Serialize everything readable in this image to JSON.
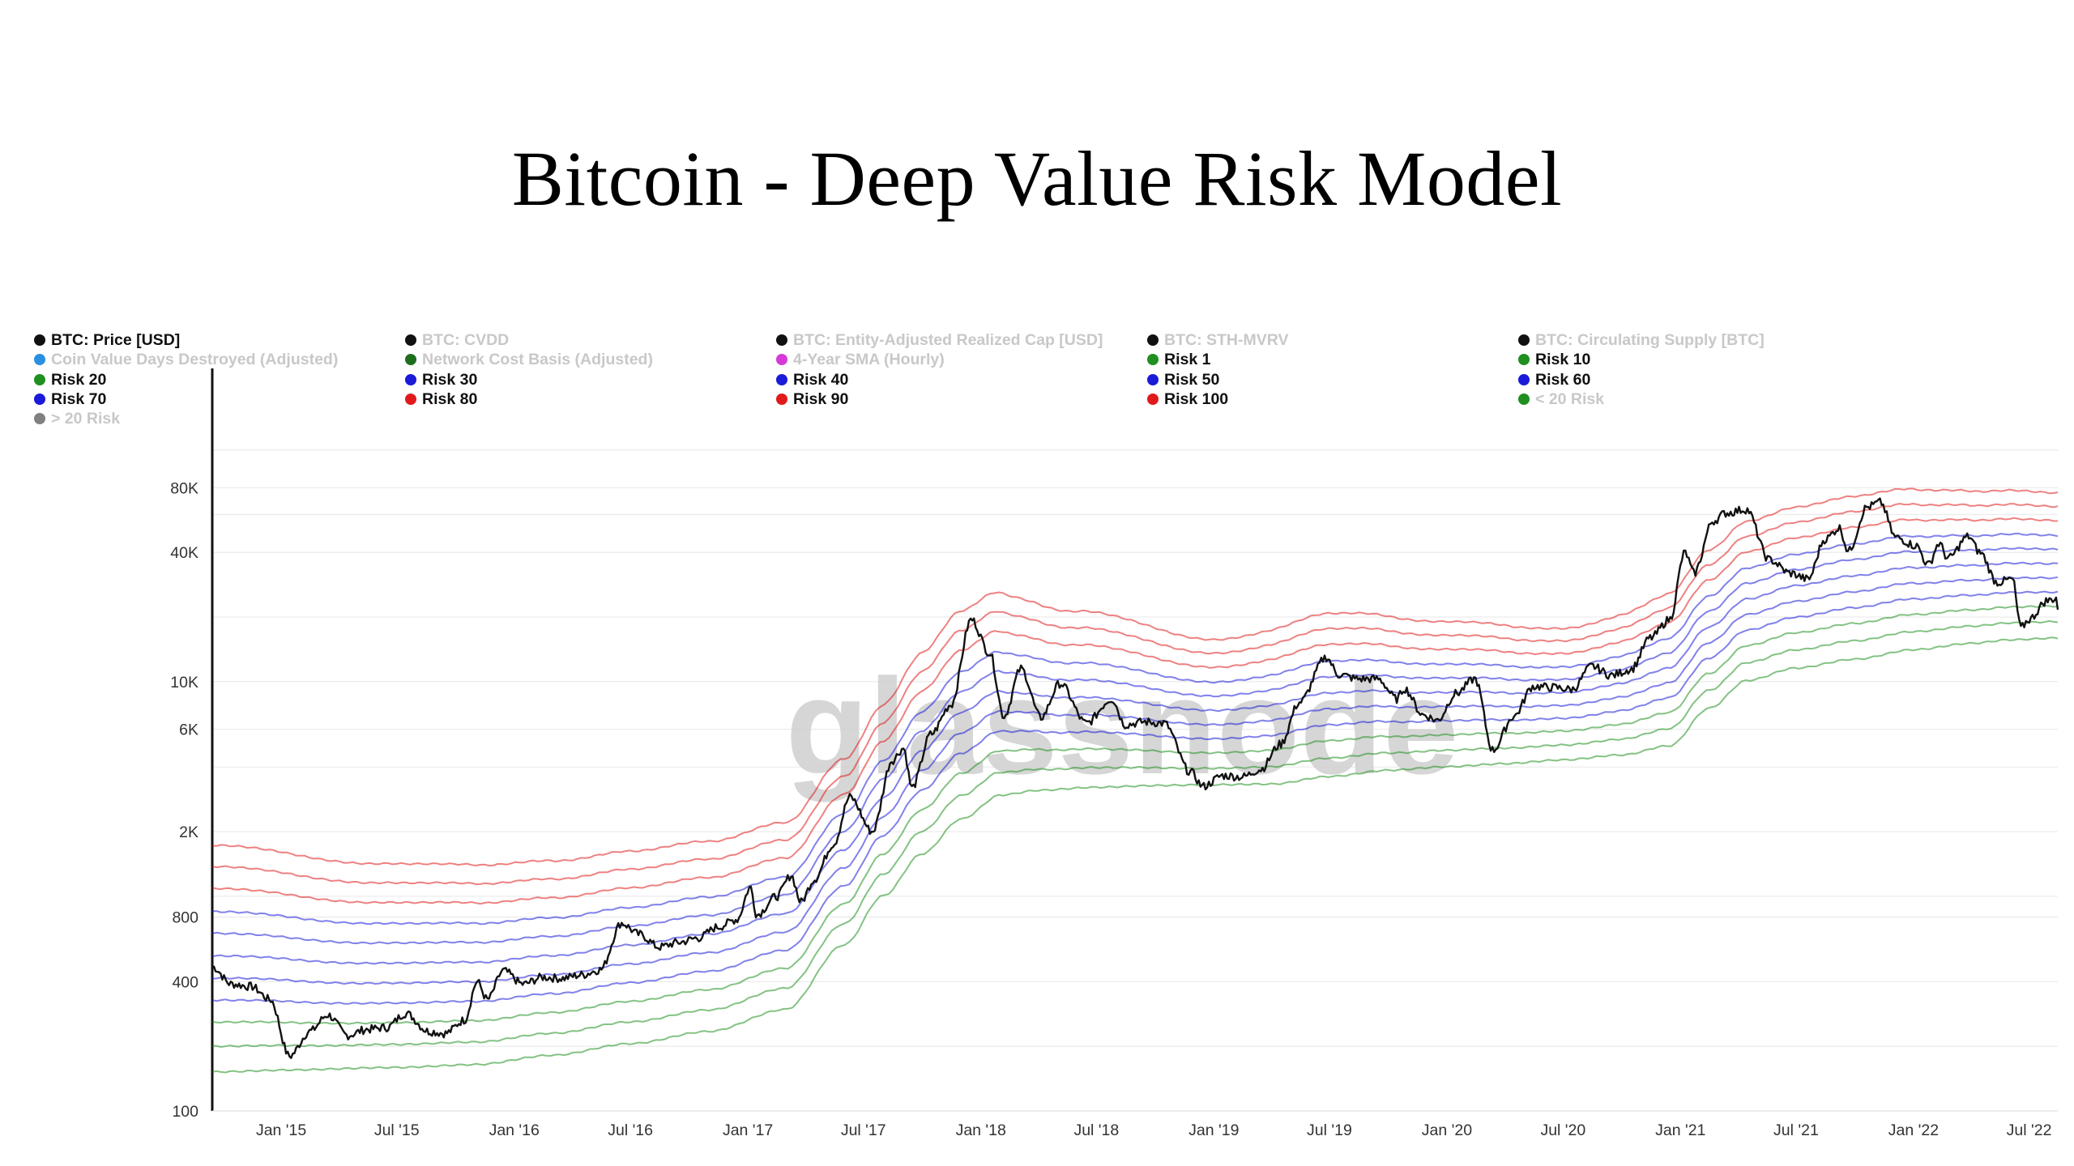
{
  "title": "Bitcoin - Deep Value Risk Model",
  "watermark": "glassnode",
  "legend": {
    "columns": [
      [
        {
          "label": "BTC: Price [USD]",
          "color": "#111111",
          "active": true
        },
        {
          "label": "Coin Value Days Destroyed (Adjusted)",
          "color": "#2a8fe0",
          "active": false
        },
        {
          "label": "Risk 20",
          "color": "#1f8f1f",
          "active": true
        },
        {
          "label": "Risk 70",
          "color": "#1a1ad8",
          "active": true
        },
        {
          "label": "> 20 Risk",
          "color": "#808080",
          "active": false
        }
      ],
      [
        {
          "label": "BTC: CVDD",
          "color": "#111111",
          "active": false
        },
        {
          "label": "Network Cost Basis (Adjusted)",
          "color": "#1e6e1e",
          "active": false
        },
        {
          "label": "Risk 30",
          "color": "#1a1ad8",
          "active": true
        },
        {
          "label": "Risk 80",
          "color": "#e01a1a",
          "active": true
        }
      ],
      [
        {
          "label": "BTC: Entity-Adjusted Realized Cap [USD]",
          "color": "#111111",
          "active": false
        },
        {
          "label": "4-Year SMA (Hourly)",
          "color": "#d63ad6",
          "active": false
        },
        {
          "label": "Risk 40",
          "color": "#1a1ad8",
          "active": true
        },
        {
          "label": "Risk 90",
          "color": "#e01a1a",
          "active": true
        }
      ],
      [
        {
          "label": "BTC: STH-MVRV",
          "color": "#111111",
          "active": false
        },
        {
          "label": "Risk 1",
          "color": "#1f8f1f",
          "active": true
        },
        {
          "label": "Risk 50",
          "color": "#1a1ad8",
          "active": true
        },
        {
          "label": "Risk 100",
          "color": "#e01a1a",
          "active": true
        }
      ],
      [
        {
          "label": "BTC: Circulating Supply [BTC]",
          "color": "#111111",
          "active": false
        },
        {
          "label": "Risk 10",
          "color": "#1f8f1f",
          "active": true
        },
        {
          "label": "Risk 60",
          "color": "#1a1ad8",
          "active": true
        },
        {
          "label": "< 20 Risk",
          "color": "#1f8f1f",
          "active": false
        }
      ]
    ]
  },
  "chart_data": {
    "type": "line",
    "y_scale": "log",
    "ylim": [
      100,
      150000
    ],
    "xlim": [
      "2014-09-15",
      "2022-08-15"
    ],
    "y_ticks": [
      {
        "value": 100,
        "label": "100"
      },
      {
        "value": 400,
        "label": "400"
      },
      {
        "value": 800,
        "label": "800"
      },
      {
        "value": 2000,
        "label": "2K"
      },
      {
        "value": 6000,
        "label": "6K"
      },
      {
        "value": 10000,
        "label": "10K"
      },
      {
        "value": 40000,
        "label": "40K"
      },
      {
        "value": 80000,
        "label": "80K"
      }
    ],
    "x_ticks": [
      {
        "date": "2015-01-01",
        "label": "Jan '15"
      },
      {
        "date": "2015-07-01",
        "label": "Jul '15"
      },
      {
        "date": "2016-01-01",
        "label": "Jan '16"
      },
      {
        "date": "2016-07-01",
        "label": "Jul '16"
      },
      {
        "date": "2017-01-01",
        "label": "Jan '17"
      },
      {
        "date": "2017-07-01",
        "label": "Jul '17"
      },
      {
        "date": "2018-01-01",
        "label": "Jan '18"
      },
      {
        "date": "2018-07-01",
        "label": "Jul '18"
      },
      {
        "date": "2019-01-01",
        "label": "Jan '19"
      },
      {
        "date": "2019-07-01",
        "label": "Jul '19"
      },
      {
        "date": "2020-01-01",
        "label": "Jan '20"
      },
      {
        "date": "2020-07-01",
        "label": "Jul '20"
      },
      {
        "date": "2021-01-01",
        "label": "Jan '21"
      },
      {
        "date": "2021-07-01",
        "label": "Jul '21"
      },
      {
        "date": "2022-01-01",
        "label": "Jan '22"
      },
      {
        "date": "2022-07-01",
        "label": "Jul '22"
      }
    ],
    "price_series": {
      "name": "BTC: Price [USD]",
      "color": "#111111",
      "points": [
        [
          "2014-09-15",
          470
        ],
        [
          "2014-10-15",
          390
        ],
        [
          "2014-11-15",
          380
        ],
        [
          "2014-12-15",
          330
        ],
        [
          "2015-01-14",
          180
        ],
        [
          "2015-02-15",
          235
        ],
        [
          "2015-03-15",
          280
        ],
        [
          "2015-04-15",
          225
        ],
        [
          "2015-05-15",
          240
        ],
        [
          "2015-06-15",
          245
        ],
        [
          "2015-07-15",
          285
        ],
        [
          "2015-08-20",
          235
        ],
        [
          "2015-09-15",
          230
        ],
        [
          "2015-10-15",
          265
        ],
        [
          "2015-11-04",
          400
        ],
        [
          "2015-11-20",
          330
        ],
        [
          "2015-12-15",
          450
        ],
        [
          "2016-01-15",
          390
        ],
        [
          "2016-02-15",
          420
        ],
        [
          "2016-03-15",
          415
        ],
        [
          "2016-04-15",
          430
        ],
        [
          "2016-05-15",
          455
        ],
        [
          "2016-06-17",
          750
        ],
        [
          "2016-07-15",
          665
        ],
        [
          "2016-08-15",
          580
        ],
        [
          "2016-09-15",
          610
        ],
        [
          "2016-10-15",
          640
        ],
        [
          "2016-11-15",
          720
        ],
        [
          "2016-12-15",
          780
        ],
        [
          "2017-01-05",
          1100
        ],
        [
          "2017-01-15",
          820
        ],
        [
          "2017-02-15",
          1000
        ],
        [
          "2017-03-10",
          1250
        ],
        [
          "2017-03-25",
          940
        ],
        [
          "2017-04-15",
          1200
        ],
        [
          "2017-05-15",
          1750
        ],
        [
          "2017-06-10",
          2900
        ],
        [
          "2017-07-15",
          2000
        ],
        [
          "2017-08-15",
          4300
        ],
        [
          "2017-09-02",
          4900
        ],
        [
          "2017-09-15",
          3200
        ],
        [
          "2017-10-15",
          5700
        ],
        [
          "2017-11-15",
          7800
        ],
        [
          "2017-12-17",
          19500
        ],
        [
          "2018-01-15",
          13600
        ],
        [
          "2018-02-06",
          6900
        ],
        [
          "2018-03-05",
          11500
        ],
        [
          "2018-04-05",
          6800
        ],
        [
          "2018-05-05",
          9800
        ],
        [
          "2018-06-15",
          6400
        ],
        [
          "2018-07-25",
          8300
        ],
        [
          "2018-08-15",
          6300
        ],
        [
          "2018-09-15",
          6500
        ],
        [
          "2018-10-15",
          6400
        ],
        [
          "2018-11-25",
          3800
        ],
        [
          "2018-12-15",
          3250
        ],
        [
          "2019-01-15",
          3650
        ],
        [
          "2019-02-15",
          3600
        ],
        [
          "2019-03-15",
          3900
        ],
        [
          "2019-04-15",
          5100
        ],
        [
          "2019-05-15",
          8000
        ],
        [
          "2019-06-26",
          13000
        ],
        [
          "2019-07-15",
          10800
        ],
        [
          "2019-08-15",
          10300
        ],
        [
          "2019-09-15",
          10300
        ],
        [
          "2019-10-15",
          8300
        ],
        [
          "2019-10-26",
          9300
        ],
        [
          "2019-11-25",
          7000
        ],
        [
          "2019-12-17",
          6600
        ],
        [
          "2020-01-15",
          8800
        ],
        [
          "2020-02-14",
          10300
        ],
        [
          "2020-03-13",
          4800
        ],
        [
          "2020-04-15",
          6900
        ],
        [
          "2020-05-15",
          9500
        ],
        [
          "2020-06-15",
          9400
        ],
        [
          "2020-07-15",
          9200
        ],
        [
          "2020-08-15",
          11800
        ],
        [
          "2020-09-15",
          10700
        ],
        [
          "2020-10-15",
          11400
        ],
        [
          "2020-11-15",
          16000
        ],
        [
          "2020-12-15",
          19500
        ],
        [
          "2021-01-08",
          40000
        ],
        [
          "2021-01-22",
          32000
        ],
        [
          "2021-02-21",
          56000
        ],
        [
          "2021-03-13",
          61000
        ],
        [
          "2021-04-14",
          63500
        ],
        [
          "2021-05-20",
          37000
        ],
        [
          "2021-06-22",
          32000
        ],
        [
          "2021-07-20",
          30000
        ],
        [
          "2021-08-15",
          46000
        ],
        [
          "2021-09-07",
          52000
        ],
        [
          "2021-09-21",
          40500
        ],
        [
          "2021-10-20",
          65000
        ],
        [
          "2021-11-10",
          68500
        ],
        [
          "2021-12-04",
          47000
        ],
        [
          "2022-01-05",
          43000
        ],
        [
          "2022-01-24",
          35000
        ],
        [
          "2022-02-10",
          44000
        ],
        [
          "2022-02-24",
          37500
        ],
        [
          "2022-03-28",
          47500
        ],
        [
          "2022-04-15",
          40000
        ],
        [
          "2022-05-12",
          29000
        ],
        [
          "2022-06-05",
          30000
        ],
        [
          "2022-06-18",
          17800
        ],
        [
          "2022-07-01",
          19500
        ],
        [
          "2022-07-29",
          23800
        ],
        [
          "2022-08-13",
          24500
        ],
        [
          "2022-08-15",
          22000
        ]
      ]
    },
    "risk_band_series": [
      {
        "name": "Risk 1",
        "color": "#1f8f1f",
        "base_multiplier": 0.95
      },
      {
        "name": "Risk 10",
        "color": "#1f8f1f",
        "base_multiplier": 1.25
      },
      {
        "name": "Risk 20",
        "color": "#1f8f1f",
        "base_multiplier": 1.62
      },
      {
        "name": "Risk 30",
        "color": "#1a1ad8",
        "base_multiplier": 2.05
      },
      {
        "name": "Risk 40",
        "color": "#1a1ad8",
        "base_multiplier": 2.6
      },
      {
        "name": "Risk 50",
        "color": "#1a1ad8",
        "base_multiplier": 3.3
      },
      {
        "name": "Risk 60",
        "color": "#1a1ad8",
        "base_multiplier": 4.2
      },
      {
        "name": "Risk 70",
        "color": "#1a1ad8",
        "base_multiplier": 5.3
      },
      {
        "name": "Risk 80",
        "color": "#e01a1a",
        "base_multiplier": 6.8
      },
      {
        "name": "Risk 90",
        "color": "#e01a1a",
        "base_multiplier": 8.6
      },
      {
        "name": "Risk 100",
        "color": "#e01a1a",
        "base_multiplier": 10.8
      }
    ],
    "risk_base_curve": [
      [
        "2014-09-15",
        160
      ],
      [
        "2015-01-15",
        163
      ],
      [
        "2015-07-01",
        167
      ],
      [
        "2015-11-01",
        172
      ],
      [
        "2016-03-01",
        190
      ],
      [
        "2016-07-01",
        215
      ],
      [
        "2016-11-01",
        245
      ],
      [
        "2017-03-01",
        310
      ],
      [
        "2017-06-01",
        620
      ],
      [
        "2017-08-01",
        1050
      ],
      [
        "2017-10-01",
        1650
      ],
      [
        "2017-12-01",
        2400
      ],
      [
        "2018-02-01",
        3100
      ],
      [
        "2018-04-01",
        3250
      ],
      [
        "2018-07-01",
        3350
      ],
      [
        "2018-10-01",
        3400
      ],
      [
        "2019-01-01",
        3420
      ],
      [
        "2019-04-01",
        3450
      ],
      [
        "2019-07-01",
        3750
      ],
      [
        "2019-10-01",
        4000
      ],
      [
        "2020-01-01",
        4150
      ],
      [
        "2020-04-01",
        4280
      ],
      [
        "2020-07-01",
        4450
      ],
      [
        "2020-10-01",
        4700
      ],
      [
        "2020-12-15",
        5200
      ],
      [
        "2021-02-15",
        7800
      ],
      [
        "2021-04-15",
        10500
      ],
      [
        "2021-07-01",
        12000
      ],
      [
        "2021-10-01",
        13200
      ],
      [
        "2022-01-01",
        14600
      ],
      [
        "2022-04-01",
        15600
      ],
      [
        "2022-06-01",
        16200
      ],
      [
        "2022-08-15",
        16500
      ]
    ],
    "risk_band_spread_by_date": [
      [
        "2014-09-15",
        1.0
      ],
      [
        "2015-06-01",
        0.9
      ],
      [
        "2016-06-01",
        0.85
      ],
      [
        "2017-06-01",
        0.82
      ],
      [
        "2017-12-15",
        0.92
      ],
      [
        "2018-06-01",
        0.78
      ],
      [
        "2019-01-01",
        0.64
      ],
      [
        "2019-07-01",
        0.72
      ],
      [
        "2020-01-01",
        0.64
      ],
      [
        "2020-07-01",
        0.58
      ],
      [
        "2021-03-01",
        0.7
      ],
      [
        "2021-11-01",
        0.72
      ],
      [
        "2022-06-01",
        0.66
      ],
      [
        "2022-08-15",
        0.64
      ]
    ]
  }
}
